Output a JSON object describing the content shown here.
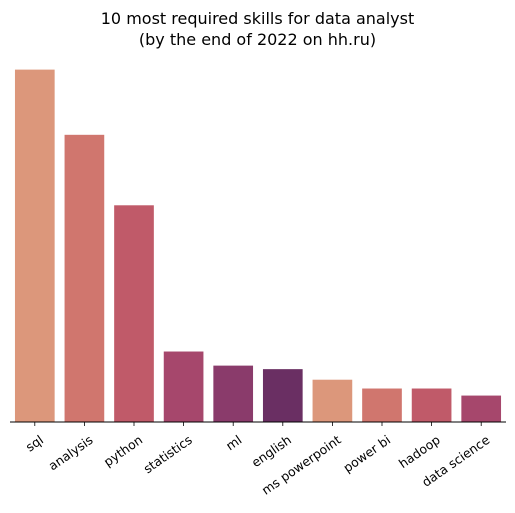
{
  "chart_data": {
    "type": "bar",
    "title_line1": "10 most required skills for data analyst",
    "title_line2": "(by the end of 2022 on hh.ru)",
    "categories": [
      "sql",
      "analysis",
      "python",
      "statistics",
      "ml",
      "english",
      "ms powerpoint",
      "power bi",
      "hadoop",
      "data science"
    ],
    "values": [
      100,
      81.5,
      61.5,
      20,
      16,
      15,
      12,
      9.5,
      9.5,
      7.5
    ],
    "colors": [
      "#dc977b",
      "#d0766e",
      "#c05a69",
      "#a6476c",
      "#8a3b6b",
      "#6a2f63",
      "#dc977b",
      "#d0766e",
      "#c05a69",
      "#a6476c"
    ],
    "ylim": [
      0,
      105
    ],
    "y_axis_visible": false,
    "grid": false,
    "xlabel": "",
    "ylabel": ""
  }
}
